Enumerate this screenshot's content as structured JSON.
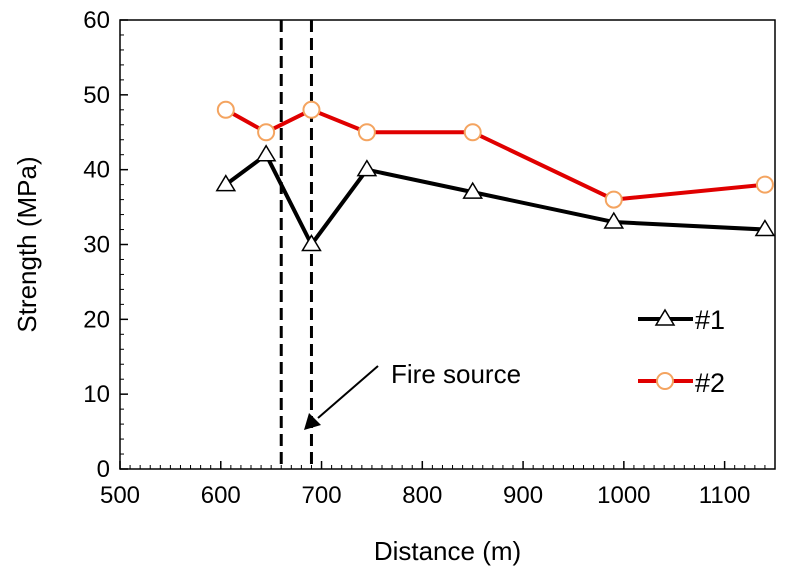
{
  "chart_data": {
    "type": "line",
    "title": "",
    "xlabel": "Distance (m)",
    "ylabel": "Strength (MPa)",
    "xlim": [
      500,
      1150
    ],
    "ylim": [
      0,
      60
    ],
    "x_ticks": [
      500,
      600,
      700,
      800,
      900,
      1000,
      1100
    ],
    "y_ticks": [
      0,
      10,
      20,
      30,
      40,
      50,
      60
    ],
    "grid": false,
    "legend_position": "right",
    "series": [
      {
        "name": "#1",
        "color": "#000000",
        "marker": "triangle",
        "x": [
          605,
          645,
          690,
          745,
          850,
          990,
          1140
        ],
        "y": [
          38,
          42,
          30,
          40,
          37,
          33,
          32
        ]
      },
      {
        "name": "#2",
        "color": "#e00000",
        "marker": "circle",
        "marker_color": "#f4a460",
        "x": [
          605,
          645,
          690,
          745,
          850,
          990,
          1140
        ],
        "y": [
          48,
          45,
          48,
          45,
          45,
          36,
          38
        ]
      }
    ],
    "reference_lines": [
      {
        "axis": "x",
        "value": 660,
        "style": "dashed"
      },
      {
        "axis": "x",
        "value": 690,
        "style": "dashed"
      }
    ],
    "annotations": [
      {
        "text": "Fire source",
        "points_to": {
          "x": 660,
          "y": 6
        }
      }
    ]
  }
}
